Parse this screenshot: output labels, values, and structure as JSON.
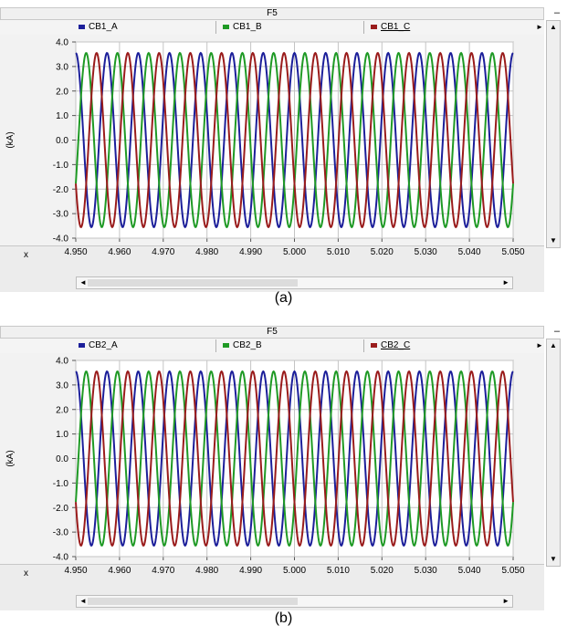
{
  "panels": [
    {
      "window_title": "F5",
      "caption": "(a)",
      "x_corner_label": "x",
      "legend": [
        "CB1_A",
        "CB1_B",
        "CB1_C"
      ]
    },
    {
      "window_title": "F5",
      "caption": "(b)",
      "x_corner_label": "x",
      "legend": [
        "CB2_A",
        "CB2_B",
        "CB2_C"
      ]
    }
  ],
  "colors": {
    "phase_a": "#1c1f9a",
    "phase_b": "#1f9a25",
    "phase_c": "#9a1c1c"
  },
  "icons": {
    "minimize": "minimize-icon",
    "scroll_up": "scroll-up-arrow-icon",
    "scroll_down": "scroll-down-arrow-icon",
    "scroll_left": "scroll-left-arrow-icon",
    "scroll_right": "scroll-right-arrow-icon",
    "expand": "expand-arrow-icon"
  },
  "chart_data": [
    {
      "type": "line",
      "ylabel": "(kA)",
      "xlim": [
        4.95,
        5.05
      ],
      "ylim": [
        -4.0,
        4.0
      ],
      "x_ticks": [
        "4.950",
        "4.960",
        "4.970",
        "4.980",
        "4.990",
        "5.000",
        "5.010",
        "5.020",
        "5.030",
        "5.040",
        "5.050"
      ],
      "y_ticks": [
        "4.0",
        "3.0",
        "2.0",
        "1.0",
        "0.0",
        "-1.0",
        "-2.0",
        "-3.0",
        "-4.0"
      ],
      "grid": true,
      "legend_position": "top",
      "series": [
        {
          "name": "CB1_A",
          "amplitude": 3.55,
          "frequency_hz": 140,
          "phase_deg": 90
        },
        {
          "name": "CB1_B",
          "amplitude": 3.55,
          "frequency_hz": 140,
          "phase_deg": -30
        },
        {
          "name": "CB1_C",
          "amplitude": 3.55,
          "frequency_hz": 140,
          "phase_deg": 210
        }
      ]
    },
    {
      "type": "line",
      "ylabel": "(kA)",
      "xlim": [
        4.95,
        5.05
      ],
      "ylim": [
        -4.0,
        4.0
      ],
      "x_ticks": [
        "4.950",
        "4.960",
        "4.970",
        "4.980",
        "4.990",
        "5.000",
        "5.010",
        "5.020",
        "5.030",
        "5.040",
        "5.050"
      ],
      "y_ticks": [
        "4.0",
        "3.0",
        "2.0",
        "1.0",
        "0.0",
        "-1.0",
        "-2.0",
        "-3.0",
        "-4.0"
      ],
      "grid": true,
      "legend_position": "top",
      "series": [
        {
          "name": "CB2_A",
          "amplitude": 3.55,
          "frequency_hz": 140,
          "phase_deg": 90
        },
        {
          "name": "CB2_B",
          "amplitude": 3.55,
          "frequency_hz": 140,
          "phase_deg": -30
        },
        {
          "name": "CB2_C",
          "amplitude": 3.55,
          "frequency_hz": 140,
          "phase_deg": 210
        }
      ]
    }
  ]
}
